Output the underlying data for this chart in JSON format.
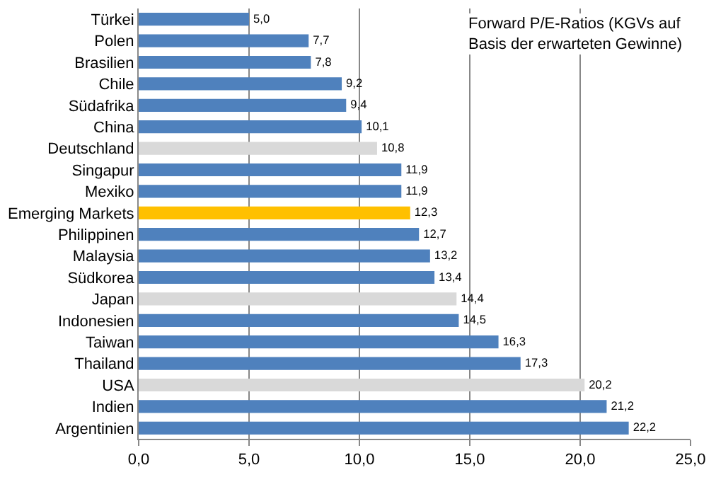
{
  "chart_data": {
    "type": "bar",
    "orientation": "horizontal",
    "title": "Forward P/E-Ratios (KGVs auf Basis der erwarteten Gewinne)",
    "categories": [
      "Türkei",
      "Polen",
      "Brasilien",
      "Chile",
      "Südafrika",
      "China",
      "Deutschland",
      "Singapur",
      "Mexiko",
      "Emerging Markets",
      "Philippinen",
      "Malaysia",
      "Südkorea",
      "Japan",
      "Indonesien",
      "Taiwan",
      "Thailand",
      "USA",
      "Indien",
      "Argentinien"
    ],
    "values": [
      5.0,
      7.7,
      7.8,
      9.2,
      9.4,
      10.1,
      10.8,
      11.9,
      11.9,
      12.3,
      12.7,
      13.2,
      13.4,
      14.4,
      14.5,
      16.3,
      17.3,
      20.2,
      21.2,
      22.2
    ],
    "value_labels": [
      "5,0",
      "7,7",
      "7,8",
      "9,2",
      "9,4",
      "10,1",
      "10,8",
      "11,9",
      "11,9",
      "12,3",
      "12,7",
      "13,2",
      "13,4",
      "14,4",
      "14,5",
      "16,3",
      "17,3",
      "20,2",
      "21,2",
      "22,2"
    ],
    "colors": [
      "#4f81bd",
      "#4f81bd",
      "#4f81bd",
      "#4f81bd",
      "#4f81bd",
      "#4f81bd",
      "#d9d9d9",
      "#4f81bd",
      "#4f81bd",
      "#ffc000",
      "#4f81bd",
      "#4f81bd",
      "#4f81bd",
      "#d9d9d9",
      "#4f81bd",
      "#4f81bd",
      "#4f81bd",
      "#d9d9d9",
      "#4f81bd",
      "#4f81bd"
    ],
    "xlim": [
      0,
      25
    ],
    "xticks": [
      {
        "value": 0,
        "label": "0,0"
      },
      {
        "value": 5,
        "label": "5,0"
      },
      {
        "value": 10,
        "label": "10,0"
      },
      {
        "value": 15,
        "label": "15,0"
      },
      {
        "value": 20,
        "label": "20,0"
      },
      {
        "value": 25,
        "label": "25,0"
      }
    ],
    "grid": "x"
  }
}
